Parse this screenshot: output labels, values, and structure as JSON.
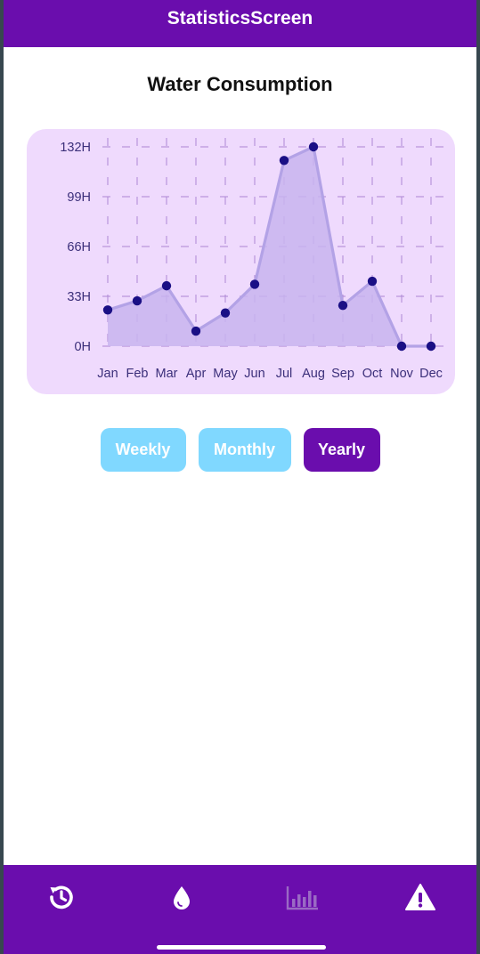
{
  "header": {
    "title": "StatisticsScreen"
  },
  "screen": {
    "title": "Water Consumption"
  },
  "chart_data": {
    "type": "area",
    "categories": [
      "Jan",
      "Feb",
      "Mar",
      "Apr",
      "May",
      "Jun",
      "Jul",
      "Aug",
      "Sep",
      "Oct",
      "Nov",
      "Dec"
    ],
    "series": [
      {
        "values": [
          24,
          30,
          40,
          10,
          22,
          41,
          123,
          132,
          27,
          43,
          0,
          0
        ]
      }
    ],
    "y_ticks": [
      "0H",
      "33H",
      "66H",
      "99H",
      "132H"
    ],
    "ylim": [
      0,
      132
    ],
    "grid": true,
    "colors": {
      "background": "#efdafd",
      "fill": "#c8b4ee",
      "line": "#b3a2e6",
      "point": "#1a0f85",
      "grid": "#b08ad6"
    }
  },
  "period_toggle": {
    "options": [
      {
        "label": "Weekly",
        "active": false
      },
      {
        "label": "Monthly",
        "active": false
      },
      {
        "label": "Yearly",
        "active": true
      }
    ]
  },
  "bottom_nav": {
    "items": [
      {
        "icon": "history-icon",
        "active": false
      },
      {
        "icon": "water-drop-icon",
        "active": false
      },
      {
        "icon": "bar-chart-icon",
        "active": true
      },
      {
        "icon": "warning-icon",
        "active": false
      }
    ]
  },
  "colors": {
    "primary": "#6a0dad",
    "button_inactive": "#80d8ff",
    "nav_active_icon": "#9a6ac4"
  }
}
